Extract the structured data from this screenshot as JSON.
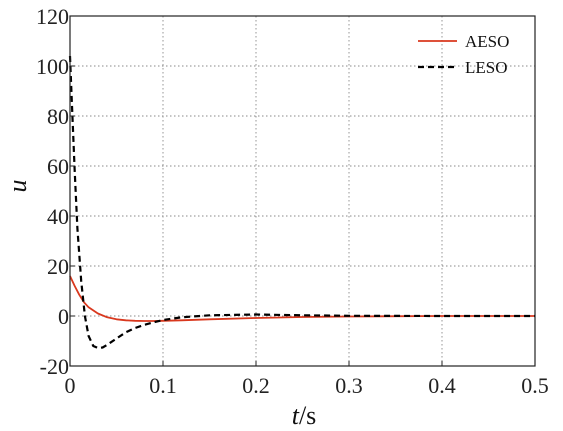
{
  "chart_data": {
    "type": "line",
    "xlabel_var": "t",
    "xlabel_unit": "/s",
    "ylabel": "u",
    "xlim": [
      0,
      0.5
    ],
    "ylim": [
      -20,
      120
    ],
    "xticks": [
      0,
      0.1,
      0.2,
      0.3,
      0.4,
      0.5
    ],
    "xtick_labels": [
      "0",
      "0.1",
      "0.2",
      "0.3",
      "0.4",
      "0.5"
    ],
    "yticks": [
      -20,
      0,
      20,
      40,
      60,
      80,
      100,
      120
    ],
    "ytick_labels": [
      "-20",
      "0",
      "20",
      "40",
      "60",
      "80",
      "100",
      "120"
    ],
    "grid": true,
    "legend_position": "top-right",
    "series": [
      {
        "name": "AESO",
        "color": "#d9381e",
        "style": "solid",
        "x": [
          0,
          0.005,
          0.01,
          0.015,
          0.02,
          0.03,
          0.04,
          0.05,
          0.06,
          0.07,
          0.08,
          0.09,
          0.1,
          0.12,
          0.15,
          0.2,
          0.25,
          0.3,
          0.4,
          0.5
        ],
        "y": [
          16,
          12,
          8.5,
          5.5,
          3.5,
          1,
          -0.5,
          -1.3,
          -1.7,
          -1.9,
          -2,
          -2,
          -1.9,
          -1.7,
          -1.3,
          -0.8,
          -0.4,
          -0.2,
          0,
          0
        ]
      },
      {
        "name": "LESO",
        "color": "#000000",
        "style": "dashed",
        "x": [
          0,
          0.002,
          0.005,
          0.008,
          0.012,
          0.016,
          0.02,
          0.025,
          0.03,
          0.035,
          0.04,
          0.05,
          0.06,
          0.07,
          0.08,
          0.09,
          0.1,
          0.12,
          0.15,
          0.2,
          0.25,
          0.3,
          0.4,
          0.5
        ],
        "y": [
          104,
          85,
          58,
          35,
          14,
          0,
          -8,
          -12,
          -12.8,
          -12.6,
          -11.5,
          -9,
          -6.5,
          -4.8,
          -3.5,
          -2.5,
          -1.6,
          -0.5,
          0.3,
          0.6,
          0.3,
          0.1,
          0,
          0
        ]
      }
    ]
  }
}
